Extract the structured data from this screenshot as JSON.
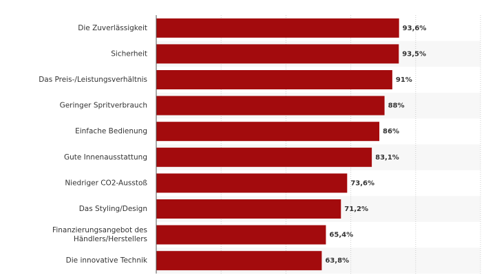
{
  "chart_data": {
    "type": "bar",
    "orientation": "horizontal",
    "categories": [
      "Die Zuverlässigkeit",
      "Sicherheit",
      "Das Preis-/Leistungsverhältnis",
      "Geringer Spritverbrauch",
      "Einfache Bedienung",
      "Gute Innenausstattung",
      "Niedriger CO2-Ausstoß",
      "Das Styling/Design",
      [
        "Finanzierungsangebot des",
        "Händlers/Herstellers"
      ],
      "Die innovative Technik"
    ],
    "values": [
      93.6,
      93.5,
      91,
      88,
      86,
      83.1,
      73.6,
      71.2,
      65.4,
      63.8
    ],
    "value_labels": [
      "93,6%",
      "93,5%",
      "91%",
      "88%",
      "86%",
      "83,1%",
      "73,6%",
      "71,2%",
      "65,4%",
      "63,8%"
    ],
    "xlim": [
      0,
      125
    ],
    "grid": true,
    "legend": "none",
    "bar_color": "#a30b0d",
    "stripe_color": "#f7f7f7",
    "grid_color": "#cccccc",
    "axis_color": "#555555"
  }
}
